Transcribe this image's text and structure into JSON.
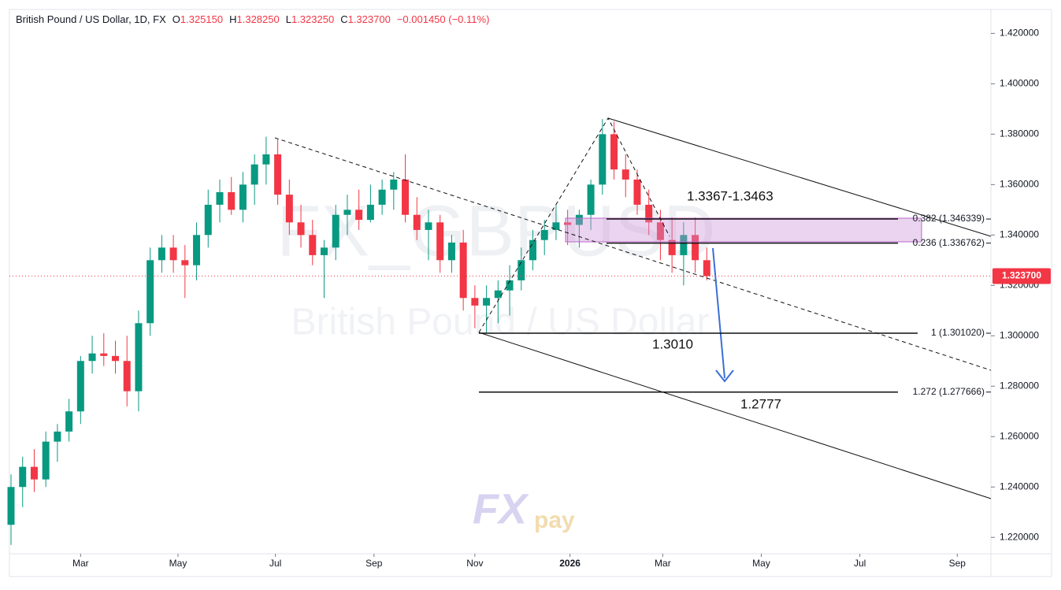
{
  "header": {
    "symbol": "British Pound / US Dollar, 1D, FX",
    "ohlc": [
      {
        "key": "O",
        "value": "1.325150"
      },
      {
        "key": "H",
        "value": "1.328250"
      },
      {
        "key": "L",
        "value": "1.323250"
      },
      {
        "key": "C",
        "value": "1.323700"
      }
    ],
    "change": "−0.001450 (−0.11%)"
  },
  "watermark": {
    "ticker": "FX_GBPUSD",
    "name": "British Pound / US Dollar",
    "logo_a": "FX",
    "logo_b": "pay"
  },
  "chart_data": {
    "type": "candlestick",
    "up_color": "#089981",
    "down_color": "#f23645",
    "ylim": [
      1.2135,
      1.4295
    ],
    "yticks": [
      {
        "value": 1.22,
        "label": "1.220000"
      },
      {
        "value": 1.24,
        "label": "1.240000"
      },
      {
        "value": 1.26,
        "label": "1.260000"
      },
      {
        "value": 1.28,
        "label": "1.280000"
      },
      {
        "value": 1.3,
        "label": "1.300000"
      },
      {
        "value": 1.32,
        "label": "1.320000"
      },
      {
        "value": 1.34,
        "label": "1.340000"
      },
      {
        "value": 1.36,
        "label": "1.360000"
      },
      {
        "value": 1.38,
        "label": "1.380000"
      },
      {
        "value": 1.4,
        "label": "1.400000"
      },
      {
        "value": 1.42,
        "label": "1.420000"
      }
    ],
    "xlim": [
      0,
      84.5
    ],
    "xticks": [
      {
        "value": 6.0,
        "label": "Mar"
      },
      {
        "value": 14.4,
        "label": "May"
      },
      {
        "value": 22.8,
        "label": "Jul"
      },
      {
        "value": 31.3,
        "label": "Sep"
      },
      {
        "value": 40.0,
        "label": "Nov"
      },
      {
        "value": 48.2,
        "label": "2026"
      },
      {
        "value": 56.2,
        "label": "Mar"
      },
      {
        "value": 64.7,
        "label": "May"
      },
      {
        "value": 73.2,
        "label": "Jul"
      },
      {
        "value": 81.6,
        "label": "Sep"
      }
    ],
    "ohlc": [
      [
        1.225,
        1.245,
        1.217,
        1.24
      ],
      [
        1.24,
        1.252,
        1.232,
        1.248
      ],
      [
        1.248,
        1.255,
        1.238,
        1.243
      ],
      [
        1.243,
        1.262,
        1.24,
        1.258
      ],
      [
        1.258,
        1.265,
        1.25,
        1.262
      ],
      [
        1.262,
        1.275,
        1.258,
        1.27
      ],
      [
        1.27,
        1.292,
        1.265,
        1.29
      ],
      [
        1.29,
        1.3,
        1.285,
        1.293
      ],
      [
        1.293,
        1.301,
        1.288,
        1.292
      ],
      [
        1.292,
        1.298,
        1.285,
        1.29
      ],
      [
        1.29,
        1.3,
        1.272,
        1.278
      ],
      [
        1.278,
        1.31,
        1.27,
        1.305
      ],
      [
        1.305,
        1.335,
        1.3,
        1.33
      ],
      [
        1.33,
        1.34,
        1.325,
        1.335
      ],
      [
        1.335,
        1.34,
        1.325,
        1.33
      ],
      [
        1.33,
        1.336,
        1.315,
        1.328
      ],
      [
        1.328,
        1.345,
        1.322,
        1.34
      ],
      [
        1.34,
        1.358,
        1.335,
        1.352
      ],
      [
        1.352,
        1.362,
        1.345,
        1.357
      ],
      [
        1.357,
        1.363,
        1.348,
        1.35
      ],
      [
        1.35,
        1.365,
        1.345,
        1.36
      ],
      [
        1.36,
        1.372,
        1.352,
        1.368
      ],
      [
        1.368,
        1.379,
        1.36,
        1.372
      ],
      [
        1.372,
        1.378,
        1.352,
        1.356
      ],
      [
        1.356,
        1.362,
        1.34,
        1.345
      ],
      [
        1.345,
        1.352,
        1.335,
        1.34
      ],
      [
        1.34,
        1.346,
        1.328,
        1.332
      ],
      [
        1.332,
        1.338,
        1.315,
        1.335
      ],
      [
        1.335,
        1.352,
        1.33,
        1.348
      ],
      [
        1.348,
        1.356,
        1.34,
        1.35
      ],
      [
        1.35,
        1.358,
        1.342,
        1.346
      ],
      [
        1.346,
        1.36,
        1.345,
        1.352
      ],
      [
        1.352,
        1.362,
        1.348,
        1.358
      ],
      [
        1.358,
        1.365,
        1.35,
        1.362
      ],
      [
        1.362,
        1.372,
        1.345,
        1.348
      ],
      [
        1.348,
        1.355,
        1.338,
        1.342
      ],
      [
        1.342,
        1.35,
        1.33,
        1.345
      ],
      [
        1.345,
        1.348,
        1.325,
        1.33
      ],
      [
        1.33,
        1.34,
        1.325,
        1.337
      ],
      [
        1.337,
        1.342,
        1.31,
        1.315
      ],
      [
        1.315,
        1.32,
        1.303,
        1.312
      ],
      [
        1.312,
        1.32,
        1.301,
        1.315
      ],
      [
        1.315,
        1.322,
        1.305,
        1.318
      ],
      [
        1.318,
        1.328,
        1.308,
        1.322
      ],
      [
        1.322,
        1.335,
        1.318,
        1.33
      ],
      [
        1.33,
        1.342,
        1.326,
        1.338
      ],
      [
        1.338,
        1.346,
        1.332,
        1.342
      ],
      [
        1.342,
        1.352,
        1.338,
        1.345
      ],
      [
        1.345,
        1.35,
        1.336,
        1.344
      ],
      [
        1.344,
        1.35,
        1.335,
        1.348
      ],
      [
        1.348,
        1.362,
        1.342,
        1.36
      ],
      [
        1.36,
        1.386,
        1.356,
        1.38
      ],
      [
        1.38,
        1.385,
        1.362,
        1.366
      ],
      [
        1.366,
        1.372,
        1.355,
        1.362
      ],
      [
        1.362,
        1.366,
        1.348,
        1.352
      ],
      [
        1.352,
        1.358,
        1.34,
        1.345
      ],
      [
        1.345,
        1.35,
        1.33,
        1.338
      ],
      [
        1.338,
        1.347,
        1.325,
        1.332
      ],
      [
        1.332,
        1.345,
        1.32,
        1.34
      ],
      [
        1.34,
        1.347,
        1.325,
        1.33
      ],
      [
        1.33,
        1.335,
        1.322,
        1.3237
      ]
    ],
    "last_price": {
      "value": 1.3237,
      "label": "1.323700"
    },
    "levels": [
      {
        "value": 1.346339,
        "label": "0.382 (1.346339)"
      },
      {
        "value": 1.336762,
        "label": "0.236 (1.336762)"
      },
      {
        "value": 1.30102,
        "label": "1 (1.301020)"
      },
      {
        "value": 1.277666,
        "label": "1.272 (1.277666)"
      }
    ],
    "annotations": [
      "1.3367-1.3463",
      "1.3010",
      "1.2777"
    ]
  }
}
